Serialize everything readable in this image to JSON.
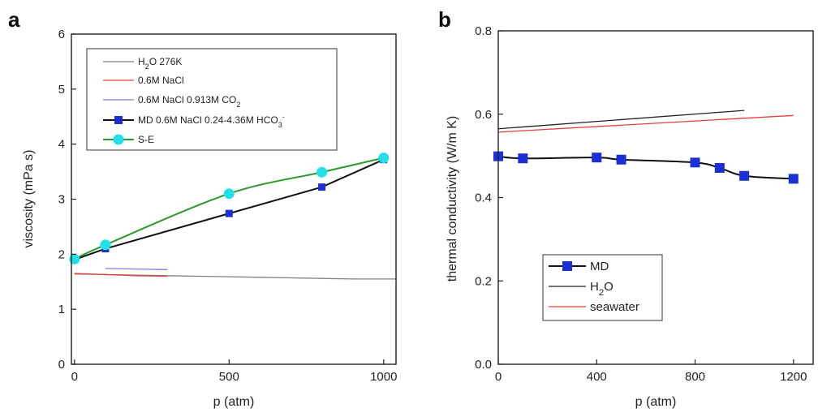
{
  "figure": {
    "panels": [
      "a",
      "b"
    ]
  },
  "chart_data": [
    {
      "panel": "a",
      "type": "line",
      "xlabel": "p (atm)",
      "ylabel": "viscosity (mPa s)",
      "xlim": [
        -10,
        1040
      ],
      "ylim": [
        0,
        6
      ],
      "xticks": [
        0,
        500,
        1000
      ],
      "xtick_labels": [
        "0",
        "500",
        "1000"
      ],
      "yticks": [
        0,
        1,
        2,
        3,
        4,
        5,
        6
      ],
      "ytick_labels": [
        "0",
        "1",
        "2",
        "3",
        "4",
        "5",
        "6"
      ],
      "legend_position": "top-left",
      "series": [
        {
          "name": "H2O 276K",
          "legend_main": "H",
          "legend_sub": "2",
          "legend_rest": "O 276K",
          "color": "#808080",
          "marker": "none",
          "x": [
            0,
            100,
            200,
            300,
            400,
            500,
            600,
            700,
            800,
            900,
            1000,
            1040
          ],
          "y": [
            1.64,
            1.63,
            1.62,
            1.61,
            1.6,
            1.59,
            1.58,
            1.57,
            1.56,
            1.55,
            1.55,
            1.55
          ]
        },
        {
          "name": "0.6M NaCl",
          "legend_main": "0.6M NaCl",
          "legend_sub": "",
          "legend_rest": "",
          "color": "#e8403a",
          "marker": "none",
          "x": [
            0,
            100,
            200,
            300
          ],
          "y": [
            1.65,
            1.63,
            1.61,
            1.6
          ]
        },
        {
          "name": "0.6M NaCl 0.913M CO2",
          "legend_main": "0.6M NaCl  0.913M CO",
          "legend_sub": "2",
          "legend_rest": "",
          "color": "#7b7be8",
          "marker": "none",
          "x": [
            100,
            200,
            300
          ],
          "y": [
            1.74,
            1.73,
            1.72
          ]
        },
        {
          "name": "MD 0.6M NaCl 0.24-4.36M HCO3-",
          "legend_main": "MD  0.6M NaCl  0.24-4.36M HCO",
          "legend_sub": "3",
          "legend_rest": "",
          "legend_sup": "-",
          "color": "#111111",
          "marker": "square",
          "marker_color": "#1a2fd6",
          "x": [
            0,
            100,
            500,
            800,
            1000
          ],
          "y": [
            1.9,
            2.1,
            2.74,
            3.22,
            3.72
          ]
        },
        {
          "name": "S-E",
          "legend_main": "S-E",
          "legend_sub": "",
          "legend_rest": "",
          "color": "#2a9a2a",
          "marker": "circle",
          "marker_color": "#22e0e8",
          "x": [
            0,
            100,
            500,
            800,
            1000
          ],
          "y": [
            1.91,
            2.17,
            3.1,
            3.49,
            3.75
          ]
        }
      ]
    },
    {
      "panel": "b",
      "type": "line",
      "xlabel": "p (atm)",
      "ylabel": "thermal conductivity (W/m K)",
      "xlim": [
        0,
        1280
      ],
      "ylim": [
        0,
        0.8
      ],
      "xticks": [
        0,
        400,
        800,
        1200
      ],
      "xtick_labels": [
        "0",
        "400",
        "800",
        "1200"
      ],
      "yticks": [
        0,
        0.2,
        0.4,
        0.6,
        0.8
      ],
      "ytick_labels": [
        "0.0",
        "0.2",
        "0.4",
        "0.6",
        "0.8"
      ],
      "legend_position": "bottom-left",
      "series": [
        {
          "name": "MD",
          "legend_main": "MD",
          "legend_sub": "",
          "legend_rest": "",
          "color": "#111111",
          "marker": "square",
          "marker_color": "#1a2fd6",
          "x": [
            0,
            100,
            400,
            500,
            800,
            900,
            1000,
            1200
          ],
          "y": [
            0.499,
            0.494,
            0.496,
            0.491,
            0.484,
            0.471,
            0.452,
            0.445
          ]
        },
        {
          "name": "H2O",
          "legend_main": "H",
          "legend_sub": "2",
          "legend_rest": "O",
          "color": "#222222",
          "marker": "none",
          "x": [
            0,
            1000
          ],
          "y": [
            0.565,
            0.609
          ]
        },
        {
          "name": "seawater",
          "legend_main": "seawater",
          "legend_sub": "",
          "legend_rest": "",
          "color": "#e8403a",
          "marker": "none",
          "x": [
            0,
            1200
          ],
          "y": [
            0.557,
            0.597
          ]
        }
      ]
    }
  ]
}
